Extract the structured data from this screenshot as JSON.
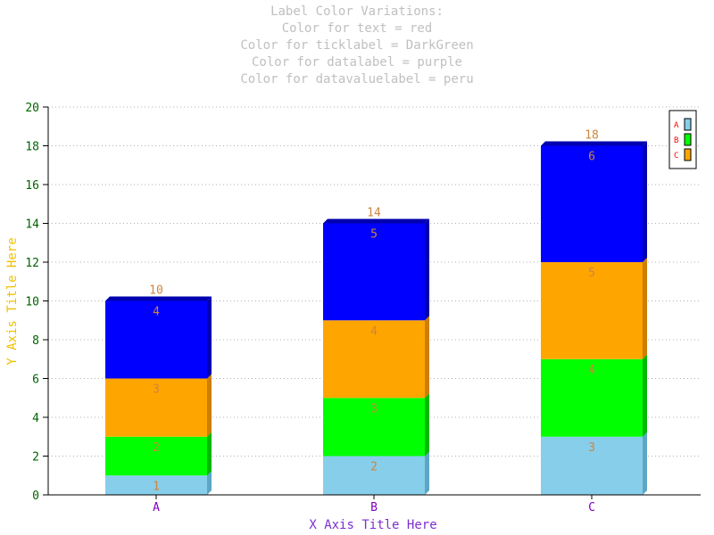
{
  "chart_data": {
    "type": "bar",
    "stacked": true,
    "title_lines": [
      "Label Color Variations:",
      "Color for text = red",
      "Color for ticklabel = DarkGreen",
      "Color for datalabel = purple",
      "Color for datavaluelabel = peru"
    ],
    "xlabel": "X Axis Title Here",
    "ylabel": "Y Axis Title Here",
    "categories": [
      "A",
      "B",
      "C"
    ],
    "ylim": [
      0,
      20
    ],
    "yticks": [
      "0",
      "2",
      "4",
      "6",
      "8",
      "10",
      "12",
      "14",
      "16",
      "18",
      "20"
    ],
    "grid": true,
    "legend_position": "top-right",
    "series": [
      {
        "name": "A",
        "values": [
          1,
          2,
          3
        ]
      },
      {
        "name": "B",
        "values": [
          2,
          3,
          4
        ]
      },
      {
        "name": "C",
        "values": [
          3,
          4,
          5
        ]
      },
      {
        "values": [
          4,
          5,
          6
        ]
      }
    ],
    "totals": [
      "10",
      "14",
      "18"
    ],
    "colors": {
      "series": [
        "#87ceeb",
        "#00ff00",
        "#ffa500",
        "#0000ff"
      ],
      "series_side": [
        "#5da6c4",
        "#00b800",
        "#cc7f00",
        "#0000b0"
      ],
      "title": "#c0c0c0",
      "axis_title_x": "#7b2fd0",
      "axis_title_y": "#f0c000",
      "tick_label": "#006400",
      "category_label": "#8000c0",
      "value_label": "#cd853f",
      "legend_text": "#ff0000"
    }
  }
}
